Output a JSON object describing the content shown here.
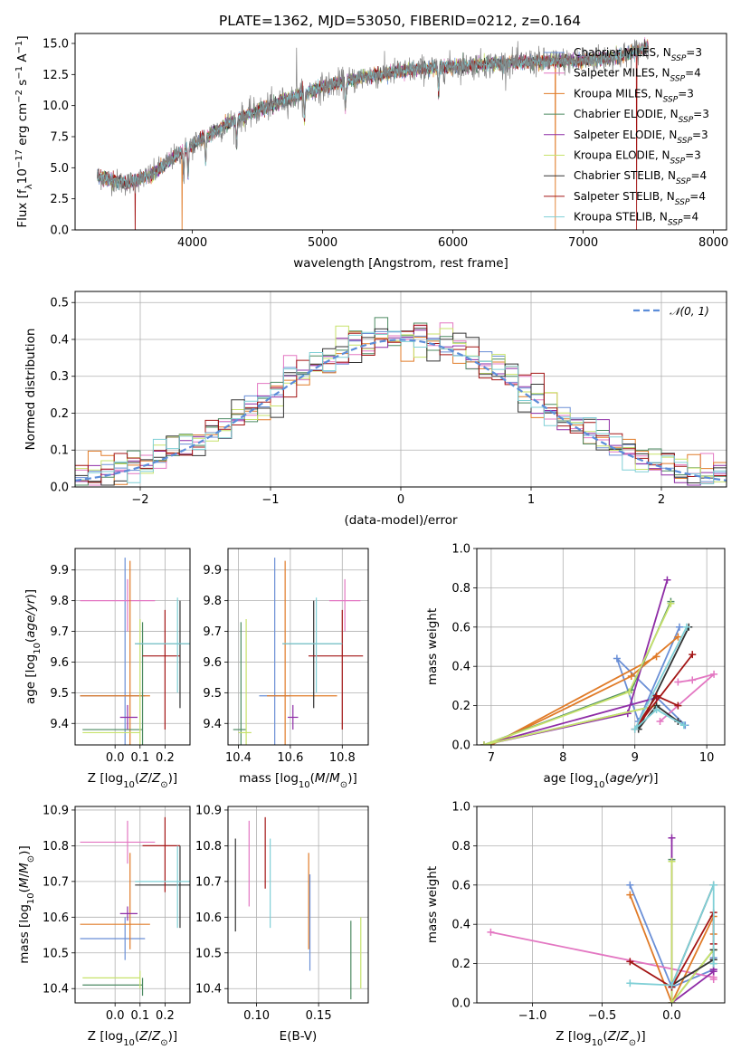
{
  "figure": {
    "title": "PLATE=1362, MJD=53050, FIBERID=0212, z=0.164"
  },
  "series_names": [
    "Chabrier MILES, N_SSP=3",
    "Salpeter MILES, N_SSP=4",
    "Kroupa MILES, N_SSP=3",
    "Chabrier ELODIE, N_SSP=3",
    "Salpeter ELODIE, N_SSP=3",
    "Kroupa ELODIE, N_SSP=3",
    "Chabrier STELIB, N_SSP=4",
    "Salpeter STELIB, N_SSP=4",
    "Kroupa STELIB, N_SSP=4"
  ],
  "colors": {
    "c0": "#6a8fd6",
    "c1": "#e377c2",
    "c2": "#e07b28",
    "c3": "#4c8a62",
    "c4": "#8e2ca6",
    "c5": "#c7e26b",
    "c6": "#333333",
    "c7": "#a31515",
    "c8": "#7fcfd6",
    "spectrum": "#808080",
    "normal": "#5b8dd9",
    "grid": "#b0b0b0"
  },
  "chart_data": [
    {
      "id": "spectrum",
      "type": "line",
      "title": "PLATE=1362, MJD=53050, FIBERID=0212, z=0.164",
      "xlabel": "wavelength [Angstrom, rest frame]",
      "ylabel": "Flux [f_λ 10^-17 erg cm^-2 s^-1 A^-1]",
      "xlim": [
        3100,
        8100
      ],
      "ylim": [
        0,
        15.8
      ],
      "xticks": [
        4000,
        5000,
        6000,
        7000,
        8000
      ],
      "yticks": [
        0.0,
        2.5,
        5.0,
        7.5,
        10.0,
        12.5,
        15.0
      ],
      "grid": false,
      "legend": "upper right",
      "continuum": {
        "x": [
          3270,
          3500,
          3700,
          3900,
          4100,
          4300,
          4600,
          5000,
          5400,
          5800,
          6200,
          6600,
          7000,
          7300,
          7500
        ],
        "y": [
          4.3,
          3.7,
          4.5,
          6.2,
          7.5,
          8.7,
          10.0,
          11.5,
          12.5,
          13.0,
          13.3,
          13.5,
          13.6,
          14.0,
          14.7
        ]
      },
      "absorption_lines": [
        3934,
        3968,
        4102,
        4340,
        4861,
        5175,
        5890
      ],
      "model_drops": [
        {
          "x": 3560,
          "series": 7
        },
        {
          "x": 3920,
          "series": 2
        },
        {
          "x": 6785,
          "series": 2
        },
        {
          "x": 7410,
          "series": 7
        }
      ]
    },
    {
      "id": "residuals",
      "type": "histogram",
      "xlabel": "(data-model)/error",
      "ylabel": "Normed distribution",
      "xlim": [
        -2.5,
        2.5
      ],
      "ylim": [
        0,
        0.53
      ],
      "xticks": [
        -2,
        -1,
        0,
        1,
        2
      ],
      "yticks": [
        0.0,
        0.1,
        0.2,
        0.3,
        0.4,
        0.5
      ],
      "grid": true,
      "legend": "upper right",
      "reference_label": "𝒩(0, 1)",
      "bin_width": 0.1
    },
    {
      "id": "age_vs_Z",
      "type": "errorbar",
      "xlabel": "Z [log10(Z/Z⊙)]",
      "ylabel": "age  [log10(age/yr)]",
      "xlim": [
        -0.16,
        0.3
      ],
      "ylim": [
        9.33,
        9.97
      ],
      "xticks": [
        0.0,
        0.1,
        0.2
      ],
      "yticks": [
        9.4,
        9.5,
        9.6,
        9.7,
        9.8,
        9.9
      ],
      "grid": true
    },
    {
      "id": "age_vs_mass",
      "type": "errorbar",
      "xlabel": "mass [log10(M/M⊙)]",
      "ylabel": "",
      "xlim": [
        10.36,
        10.9
      ],
      "ylim": [
        9.33,
        9.97
      ],
      "xticks": [
        10.4,
        10.6,
        10.8
      ],
      "yticks": [
        9.4,
        9.5,
        9.6,
        9.7,
        9.8,
        9.9
      ],
      "grid": true
    },
    {
      "id": "weight_vs_age",
      "type": "line",
      "xlabel": "age  [log10(age/yr)]",
      "ylabel": "mass weight",
      "xlim": [
        6.8,
        10.25
      ],
      "ylim": [
        0,
        1.0
      ],
      "xticks": [
        7,
        8,
        9,
        10
      ],
      "yticks": [
        0.0,
        0.2,
        0.4,
        0.6,
        0.8,
        1.0
      ],
      "grid": true
    },
    {
      "id": "mass_vs_Z",
      "type": "errorbar",
      "xlabel": "Z [log10(Z/Z⊙)]",
      "ylabel": "mass [log10(M/M⊙)]",
      "xlim": [
        -0.16,
        0.3
      ],
      "ylim": [
        10.36,
        10.91
      ],
      "xticks": [
        0.0,
        0.1,
        0.2
      ],
      "yticks": [
        10.4,
        10.5,
        10.6,
        10.7,
        10.8,
        10.9
      ],
      "grid": true
    },
    {
      "id": "mass_vs_ebv",
      "type": "errorbar",
      "xlabel": "E(B-V)",
      "ylabel": "",
      "xlim": [
        0.077,
        0.19
      ],
      "ylim": [
        10.36,
        10.91
      ],
      "xticks": [
        0.1,
        0.15
      ],
      "yticks": [
        10.4,
        10.5,
        10.6,
        10.7,
        10.8,
        10.9
      ],
      "grid": true
    },
    {
      "id": "weight_vs_Z",
      "type": "line",
      "xlabel": "Z [log10(Z/Z⊙)]",
      "ylabel": "mass weight",
      "xlim": [
        -1.4,
        0.38
      ],
      "ylim": [
        0,
        1.0
      ],
      "xticks": [
        -1.0,
        -0.5,
        0.0
      ],
      "yticks": [
        0.0,
        0.2,
        0.4,
        0.6,
        0.8,
        1.0
      ],
      "grid": true
    }
  ],
  "models": [
    {
      "Z": 0.04,
      "Zlo": -0.14,
      "Zhi": 0.12,
      "age": 9.49,
      "ageLo": 9.33,
      "ageHi": 9.94,
      "mass": 10.54,
      "massLo": 10.48,
      "massHi": 10.6,
      "ebv": 0.143,
      "ebvLo": 10.45,
      "ebvHi": 10.72,
      "pts": [
        [
          9.62,
          0.6
        ],
        [
          9.05,
          0.12
        ],
        [
          8.75,
          0.44
        ],
        [
          9.7,
          0.1
        ]
      ],
      "zpts": [
        [
          -0.3,
          0.6
        ],
        [
          0,
          0.08
        ],
        [
          0.3,
          0.17
        ],
        [
          0.3,
          0.23
        ]
      ]
    },
    {
      "Z": 0.05,
      "Zlo": -0.14,
      "Zhi": 0.16,
      "age": 9.8,
      "ageLo": 9.7,
      "ageHi": 9.87,
      "mass": 10.81,
      "massLo": 10.75,
      "massHi": 10.87,
      "ebv": 0.094,
      "ebvLo": 10.63,
      "ebvHi": 10.87,
      "pts": [
        [
          9.6,
          0.32
        ],
        [
          9.8,
          0.33
        ],
        [
          10.1,
          0.36
        ],
        [
          9.35,
          0.12
        ]
      ],
      "zpts": [
        [
          -1.3,
          0.36
        ],
        [
          0.3,
          0.13
        ],
        [
          0.3,
          0.17
        ],
        [
          0.3,
          0.12
        ]
      ]
    },
    {
      "Z": 0.06,
      "Zlo": -0.14,
      "Zhi": 0.14,
      "age": 9.49,
      "ageLo": 9.33,
      "ageHi": 9.93,
      "mass": 10.58,
      "massLo": 10.51,
      "massHi": 10.78,
      "ebv": 0.142,
      "ebvLo": 10.51,
      "ebvHi": 10.78,
      "pts": [
        [
          9.6,
          0.55
        ],
        [
          8.95,
          0.35
        ],
        [
          7.0,
          0.0
        ],
        [
          9.3,
          0.45
        ]
      ],
      "zpts": [
        [
          -0.3,
          0.55
        ],
        [
          0,
          0
        ],
        [
          0.3,
          0.44
        ],
        [
          0.3,
          0.35
        ]
      ]
    },
    {
      "Z": 0.11,
      "Zlo": -0.13,
      "Zhi": 0.11,
      "age": 9.38,
      "ageLo": 9.33,
      "ageHi": 9.73,
      "mass": 10.41,
      "massLo": 10.38,
      "massHi": 10.43,
      "ebv": 0.176,
      "ebvLo": 10.37,
      "ebvHi": 10.59,
      "pts": [
        [
          9.5,
          0.73
        ],
        [
          8.95,
          0.28
        ],
        [
          6.9,
          0.0
        ],
        [
          9.3,
          0.2
        ]
      ],
      "zpts": [
        [
          0,
          0.73
        ],
        [
          0,
          0
        ],
        [
          0.3,
          0.27
        ],
        [
          0.3,
          0.22
        ]
      ]
    },
    {
      "Z": 0.05,
      "Zlo": 0.02,
      "Zhi": 0.09,
      "age": 9.42,
      "ageLo": 9.38,
      "ageHi": 9.46,
      "mass": 10.61,
      "massLo": 10.59,
      "massHi": 10.63,
      "ebv": 0.14,
      "ebvLo": 10.6,
      "ebvHi": 10.6,
      "pts": [
        [
          9.45,
          0.84
        ],
        [
          8.9,
          0.16
        ],
        [
          6.9,
          0.0
        ],
        [
          9.3,
          0.24
        ]
      ],
      "zpts": [
        [
          0,
          0.84
        ],
        [
          0,
          0
        ],
        [
          0.3,
          0.16
        ],
        [
          0.3,
          0.17
        ]
      ]
    },
    {
      "Z": 0.1,
      "Zlo": -0.13,
      "Zhi": 0.1,
      "age": 9.37,
      "ageLo": 9.33,
      "ageHi": 9.74,
      "mass": 10.43,
      "massLo": 10.4,
      "massHi": 10.45,
      "ebv": 0.184,
      "ebvLo": 10.4,
      "ebvHi": 10.6,
      "pts": [
        [
          9.5,
          0.72
        ],
        [
          8.92,
          0.27
        ],
        [
          6.9,
          0.0
        ],
        [
          9.3,
          0.2
        ]
      ],
      "zpts": [
        [
          0,
          0.72
        ],
        [
          0,
          0
        ],
        [
          0.3,
          0.27
        ],
        [
          0.3,
          0.2
        ]
      ]
    },
    {
      "Z": 0.26,
      "Zlo": 0.08,
      "Zhi": 0.3,
      "age": 9.66,
      "ageLo": 9.45,
      "ageHi": 9.8,
      "mass": 10.69,
      "massLo": 10.57,
      "massHi": 10.8,
      "ebv": 0.083,
      "ebvLo": 10.56,
      "ebvHi": 10.82,
      "pts": [
        [
          9.75,
          0.6
        ],
        [
          9.05,
          0.08
        ],
        [
          9.3,
          0.2
        ],
        [
          9.6,
          0.12
        ]
      ],
      "zpts": [
        [
          0.3,
          0.6
        ],
        [
          0,
          0.09
        ],
        [
          0.3,
          0.22
        ],
        [
          0.3,
          0.27
        ]
      ]
    },
    {
      "Z": 0.2,
      "Zlo": 0.11,
      "Zhi": 0.26,
      "age": 9.62,
      "ageLo": 9.38,
      "ageHi": 9.77,
      "mass": 10.8,
      "massLo": 10.67,
      "massHi": 10.88,
      "ebv": 0.107,
      "ebvLo": 10.68,
      "ebvHi": 10.88,
      "pts": [
        [
          9.8,
          0.46
        ],
        [
          9.0,
          0.08
        ],
        [
          9.3,
          0.25
        ],
        [
          9.6,
          0.2
        ]
      ],
      "zpts": [
        [
          -0.3,
          0.21
        ],
        [
          0,
          0.08
        ],
        [
          0.3,
          0.46
        ],
        [
          0.3,
          0.3
        ]
      ]
    },
    {
      "Z": 0.25,
      "Zlo": 0.08,
      "Zhi": 0.3,
      "age": 9.66,
      "ageLo": 9.5,
      "ageHi": 9.81,
      "mass": 10.7,
      "massLo": 10.57,
      "massHi": 10.8,
      "ebv": 0.111,
      "ebvLo": 10.57,
      "ebvHi": 10.82,
      "pts": [
        [
          9.72,
          0.6
        ],
        [
          9.0,
          0.08
        ],
        [
          9.3,
          0.18
        ],
        [
          9.68,
          0.1
        ]
      ],
      "zpts": [
        [
          -0.3,
          0.1
        ],
        [
          0,
          0.09
        ],
        [
          0.3,
          0.6
        ],
        [
          0.3,
          0.2
        ]
      ]
    }
  ]
}
